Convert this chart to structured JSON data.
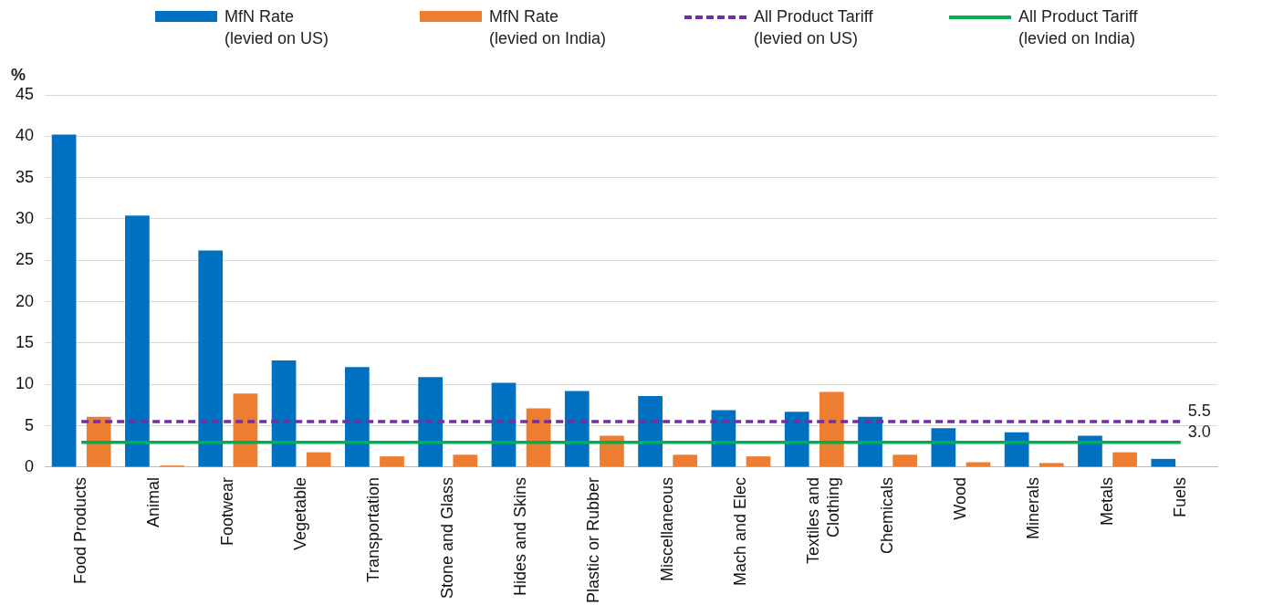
{
  "chart_data": {
    "type": "bar",
    "ylabel": "%",
    "categories": [
      "Food Products",
      "Animal",
      "Footwear",
      "Vegetable",
      "Transportation",
      "Stone and Glass",
      "Hides and Skins",
      "Plastic or Rubber",
      "Miscellaneous",
      "Mach and Elec",
      "Textiles and Clothing",
      "Chemicals",
      "Wood",
      "Minerals",
      "Metals",
      "Fuels"
    ],
    "series": [
      {
        "name": "MfN Rate\n(levied on US)",
        "color": "#0070c0",
        "values": [
          40.2,
          30.4,
          26.2,
          12.9,
          12.1,
          10.9,
          10.2,
          9.2,
          8.6,
          6.9,
          6.7,
          6.1,
          4.7,
          4.2,
          3.8,
          1.0
        ]
      },
      {
        "name": "MfN Rate\n(levied on India)",
        "color": "#ed7d31",
        "values": [
          6.1,
          0.2,
          8.9,
          1.8,
          1.3,
          1.5,
          7.1,
          3.8,
          1.5,
          1.3,
          9.1,
          1.5,
          0.6,
          0.5,
          1.8,
          0
        ]
      },
      {
        "name": "All Product Tariff\n(levied on US)",
        "type": "line",
        "line_style": "dashed",
        "color": "#7030a0",
        "values": [
          5.5,
          5.5,
          5.5,
          5.5,
          5.5,
          5.5,
          5.5,
          5.5,
          5.5,
          5.5,
          5.5,
          5.5,
          5.5,
          5.5,
          5.5,
          5.5
        ],
        "value_labels": [
          null,
          null,
          null,
          null,
          null,
          null,
          null,
          null,
          null,
          null,
          null,
          null,
          null,
          null,
          null,
          "5.5"
        ]
      },
      {
        "name": "All Product Tariff\n(levied on India)",
        "type": "line",
        "line_style": "solid",
        "color": "#00b050",
        "values": [
          3.0,
          3.0,
          3.0,
          3.0,
          3.0,
          3.0,
          3.0,
          3.0,
          3.0,
          3.0,
          3.0,
          3.0,
          3.0,
          3.0,
          3.0,
          3.0
        ],
        "value_labels": [
          null,
          null,
          null,
          null,
          null,
          null,
          null,
          null,
          null,
          null,
          null,
          null,
          null,
          null,
          null,
          "3.0"
        ]
      }
    ],
    "ylim": [
      0,
      45
    ],
    "yticks": [
      0,
      5,
      10,
      15,
      20,
      25,
      30,
      35,
      40,
      45
    ],
    "grid": "y",
    "legend": "top",
    "marker": "none"
  }
}
